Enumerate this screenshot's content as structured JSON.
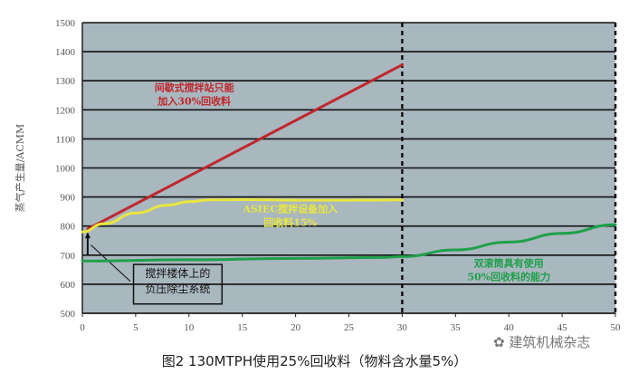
{
  "chart_data": {
    "type": "line",
    "title": "",
    "caption": "图2   130MTPH使用25%回收料（物料含水量5%）",
    "xlabel": "",
    "ylabel": "蒸气产生量/ACMM",
    "xlim": [
      0,
      50
    ],
    "ylim": [
      500,
      1500
    ],
    "xticks": [
      "0",
      "5",
      "10",
      "15",
      "20",
      "25",
      "30",
      "35",
      "40",
      "45",
      "50"
    ],
    "yticks": [
      "500",
      "600",
      "700",
      "800",
      "900",
      "1000",
      "1100",
      "1200",
      "1300",
      "1400",
      "1500"
    ],
    "grid": "horizontal",
    "vlines": [
      30,
      50
    ],
    "series": [
      {
        "name": "间歇式搅拌站只能加入30%回收料",
        "color": "#c0272d",
        "label_lines": [
          "间歇式搅拌站只能",
          "加入30%回收料"
        ],
        "x": [
          0.5,
          30
        ],
        "y": [
          790,
          1355
        ]
      },
      {
        "name": "ASIEC搅拌设备加入回收料15%",
        "color": "#e8e640",
        "label_lines": [
          "ASIEC搅拌设备加入",
          "回收料15%"
        ],
        "x": [
          0,
          2,
          5,
          8,
          10,
          12,
          15,
          20,
          25,
          30
        ],
        "y": [
          780,
          808,
          845,
          872,
          884,
          890,
          891,
          889,
          889,
          890
        ]
      },
      {
        "name": "双滚筒具有使用50%回收料的能力",
        "color": "#1fa04a",
        "label_lines": [
          "双滚筒具有使用",
          "50%回收料的能力"
        ],
        "x": [
          0,
          10,
          20,
          28,
          30,
          35,
          40,
          45,
          50
        ],
        "y": [
          680,
          684,
          689,
          692,
          695,
          718,
          745,
          775,
          805
        ]
      }
    ],
    "annotation": {
      "lines": [
        "搅拌楼体上的",
        "负压除尘系统"
      ],
      "arrow_x": 0.5,
      "arrow_y": [
        700,
        780
      ]
    }
  },
  "watermark": "建筑机械杂志",
  "colors": {
    "plot_bg": "#a9b7bf",
    "grid": "#111111"
  }
}
